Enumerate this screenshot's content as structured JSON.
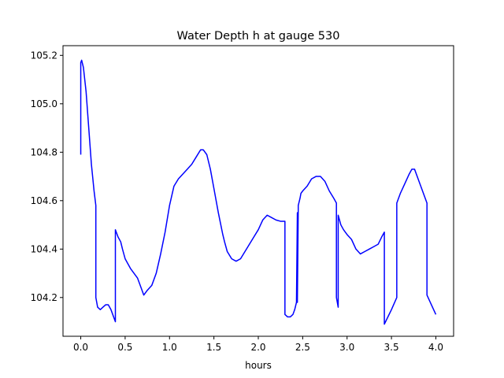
{
  "chart_data": {
    "type": "line",
    "title": "Water Depth h at gauge 530",
    "xlabel": "hours",
    "ylabel": "",
    "xlim": [
      -0.2,
      4.2
    ],
    "ylim": [
      104.04,
      105.24
    ],
    "xticks": [
      0.0,
      0.5,
      1.0,
      1.5,
      2.0,
      2.5,
      3.0,
      3.5,
      4.0
    ],
    "xtick_labels": [
      "0.0",
      "0.5",
      "1.0",
      "1.5",
      "2.0",
      "2.5",
      "3.0",
      "3.5",
      "4.0"
    ],
    "yticks": [
      104.2,
      104.4,
      104.6,
      104.8,
      105.0,
      105.2
    ],
    "ytick_labels": [
      "104.2",
      "104.4",
      "104.6",
      "104.8",
      "105.0",
      "105.2"
    ],
    "grid": false,
    "legend": "none",
    "series": [
      {
        "color": "#0000ff",
        "x": [
          0.0,
          0.0,
          0.01,
          0.03,
          0.06,
          0.09,
          0.12,
          0.15,
          0.17,
          0.17,
          0.19,
          0.22,
          0.25,
          0.28,
          0.31,
          0.34,
          0.37,
          0.39,
          0.39,
          0.42,
          0.45,
          0.47,
          0.5,
          0.53,
          0.56,
          0.6,
          0.64,
          0.68,
          0.71,
          0.75,
          0.8,
          0.85,
          0.9,
          0.95,
          1.0,
          1.05,
          1.1,
          1.15,
          1.2,
          1.25,
          1.3,
          1.35,
          1.38,
          1.42,
          1.46,
          1.5,
          1.55,
          1.6,
          1.62,
          1.65,
          1.7,
          1.75,
          1.8,
          1.85,
          1.9,
          1.95,
          2.0,
          2.05,
          2.1,
          2.15,
          2.2,
          2.25,
          2.3,
          2.3,
          2.33,
          2.36,
          2.39,
          2.41,
          2.43,
          2.44,
          2.44,
          2.45,
          2.45,
          2.47,
          2.48,
          2.5,
          2.55,
          2.6,
          2.65,
          2.7,
          2.75,
          2.8,
          2.85,
          2.88,
          2.88,
          2.9,
          2.9,
          2.93,
          2.96,
          3.0,
          3.05,
          3.1,
          3.15,
          3.2,
          3.25,
          3.3,
          3.35,
          3.39,
          3.42,
          3.42,
          3.5,
          3.56,
          3.56,
          3.6,
          3.65,
          3.7,
          3.73,
          3.76,
          3.8,
          3.85,
          3.9,
          3.9,
          3.95,
          4.0
        ],
        "y": [
          104.79,
          105.17,
          105.18,
          105.15,
          105.05,
          104.9,
          104.75,
          104.64,
          104.58,
          104.2,
          104.16,
          104.15,
          104.16,
          104.17,
          104.17,
          104.15,
          104.12,
          104.1,
          104.48,
          104.45,
          104.43,
          104.4,
          104.36,
          104.34,
          104.32,
          104.3,
          104.28,
          104.24,
          104.21,
          104.23,
          104.25,
          104.3,
          104.38,
          104.47,
          104.58,
          104.66,
          104.69,
          104.71,
          104.73,
          104.75,
          104.78,
          104.81,
          104.81,
          104.79,
          104.73,
          104.65,
          104.55,
          104.46,
          104.43,
          104.39,
          104.36,
          104.35,
          104.36,
          104.39,
          104.42,
          104.45,
          104.48,
          104.52,
          104.54,
          104.53,
          104.52,
          104.515,
          104.515,
          104.13,
          104.12,
          104.12,
          104.13,
          104.15,
          104.18,
          104.55,
          104.18,
          104.56,
          104.58,
          104.61,
          104.63,
          104.64,
          104.66,
          104.69,
          104.7,
          104.7,
          104.68,
          104.64,
          104.61,
          104.59,
          104.2,
          104.16,
          104.54,
          104.5,
          104.48,
          104.46,
          104.44,
          104.4,
          104.38,
          104.39,
          104.4,
          104.41,
          104.42,
          104.45,
          104.47,
          104.09,
          104.15,
          104.2,
          104.59,
          104.63,
          104.67,
          104.71,
          104.73,
          104.73,
          104.69,
          104.64,
          104.59,
          104.21,
          104.17,
          104.13
        ]
      }
    ]
  }
}
